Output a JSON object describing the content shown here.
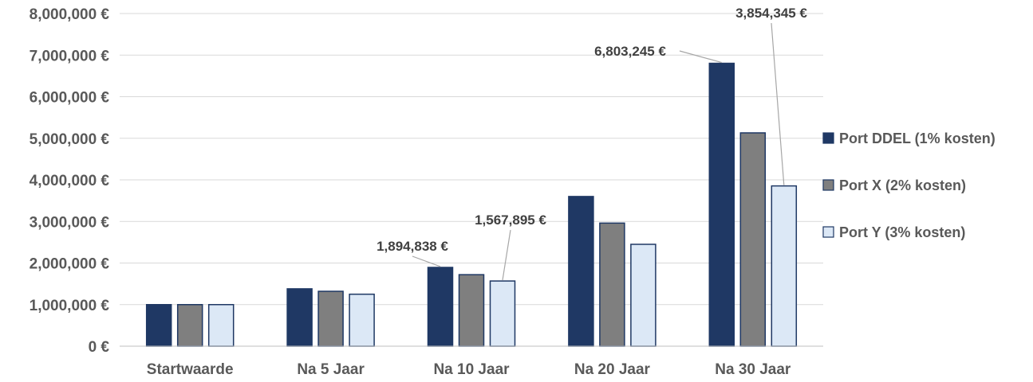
{
  "chart_data": {
    "type": "bar",
    "title": "",
    "xlabel": "",
    "ylabel": "",
    "ylim": [
      0,
      8000000
    ],
    "y_ticks": [
      0,
      1000000,
      2000000,
      3000000,
      4000000,
      5000000,
      6000000,
      7000000,
      8000000
    ],
    "y_tick_labels": [
      "0 €",
      "1,000,000 €",
      "2,000,000 €",
      "3,000,000 €",
      "4,000,000 €",
      "5,000,000 €",
      "6,000,000 €",
      "7,000,000 €",
      "8,000,000 €"
    ],
    "grid": true,
    "legend_position": "right",
    "categories": [
      "Startwaarde",
      "Na 5 Jaar",
      "Na 10 Jaar",
      "Na 20 Jaar",
      "Na 30 Jaar"
    ],
    "series": [
      {
        "name": "Port DDEL (1% kosten)",
        "color": "#1f3864",
        "values": [
          1000000,
          1380000,
          1894838,
          3600000,
          6803245
        ]
      },
      {
        "name": "Port X (2% kosten)",
        "color": "#7f7f7f",
        "values": [
          1000000,
          1320000,
          1720000,
          2960000,
          5130000
        ]
      },
      {
        "name": "Port Y (3% kosten)",
        "color": "#dce8f6",
        "values": [
          1000000,
          1250000,
          1567895,
          2450000,
          3854345
        ]
      }
    ],
    "annotations": [
      {
        "series": 0,
        "category": 2,
        "text": "1,894,838 €"
      },
      {
        "series": 2,
        "category": 2,
        "text": "1,567,895 €"
      },
      {
        "series": 0,
        "category": 4,
        "text": "6,803,245 €"
      },
      {
        "series": 2,
        "category": 4,
        "text": "3,854,345 €"
      }
    ]
  }
}
